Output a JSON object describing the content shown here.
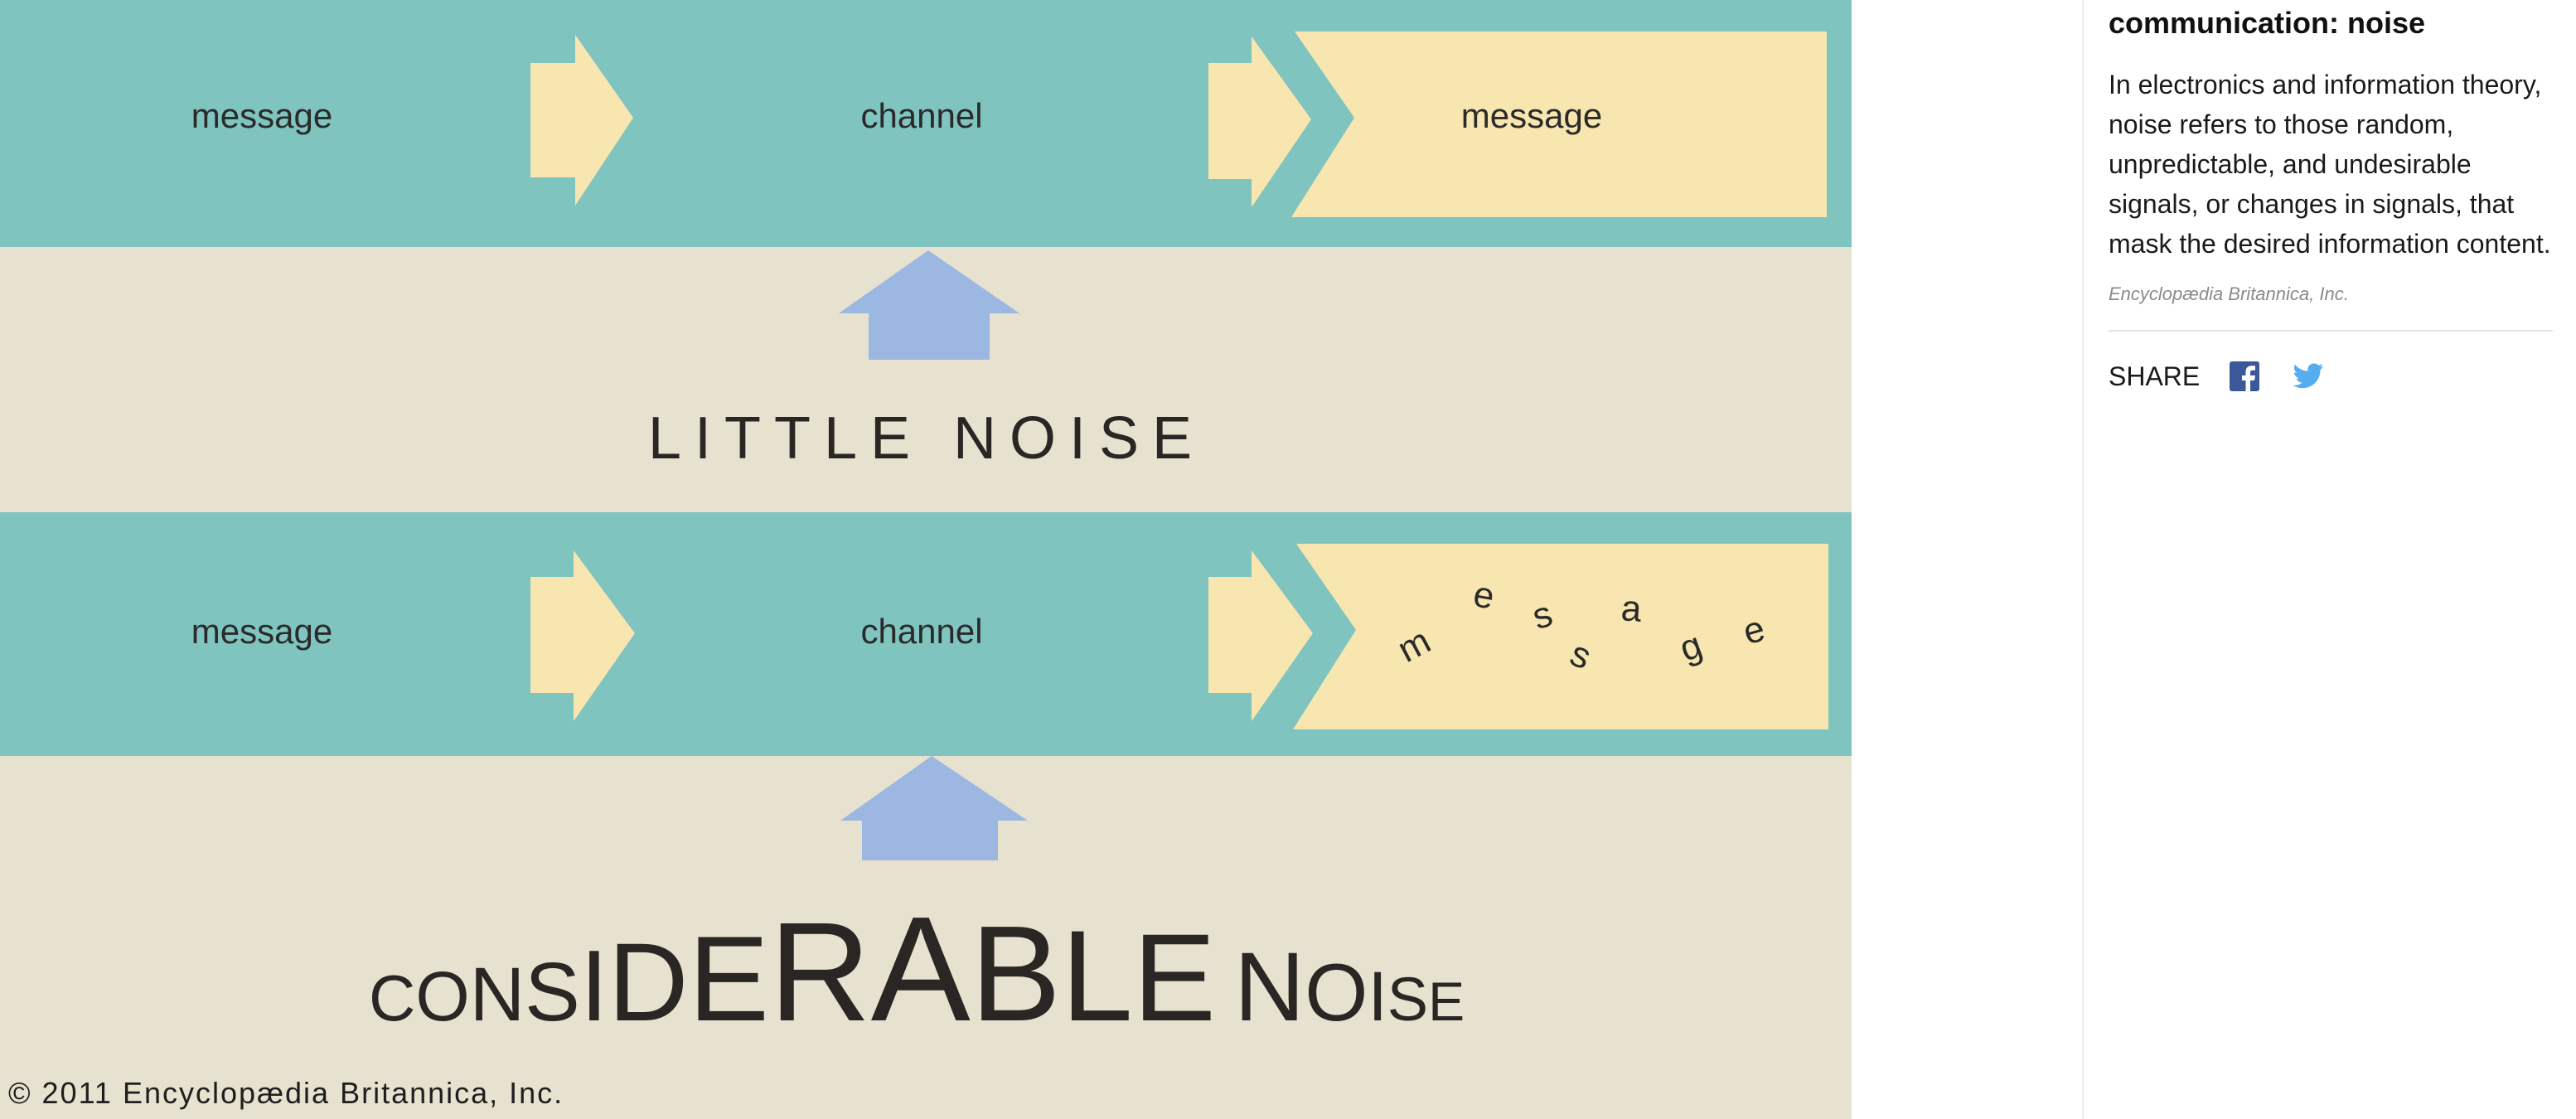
{
  "figure": {
    "top_row": {
      "sender_label": "message",
      "channel_label": "channel",
      "receiver_label": "message",
      "noise_label": "LITTLE NOISE"
    },
    "bottom_row": {
      "sender_label": "message",
      "channel_label": "channel",
      "scrambled_letters": [
        "m",
        "e",
        "s",
        "s",
        "a",
        "g",
        "e"
      ],
      "noise_parts": [
        "C",
        "O",
        "N",
        "S",
        "I",
        "D",
        "E",
        "R",
        "A",
        "B",
        "L",
        "E",
        "N",
        "O",
        "I",
        "S",
        "E"
      ]
    },
    "copyright": "© 2011 Encyclopædia Britannica, Inc.",
    "colors": {
      "band": "#80c4c0",
      "background": "#e7e1cf",
      "arrow_yellow": "#f8e6b0",
      "noise_arrow": "#9cb8e2"
    }
  },
  "caption": {
    "title": "communication: noise",
    "body": "In electronics and information theory, noise refers to those random, unpredictable, and undesirable signals, or changes in signals, that mask the desired information content.",
    "credit": "Encyclopædia Britannica, Inc.",
    "share_label": "SHARE",
    "share_icons": [
      "facebook-icon",
      "twitter-icon"
    ],
    "colors": {
      "facebook": "#3b5998",
      "twitter": "#55acee"
    }
  }
}
